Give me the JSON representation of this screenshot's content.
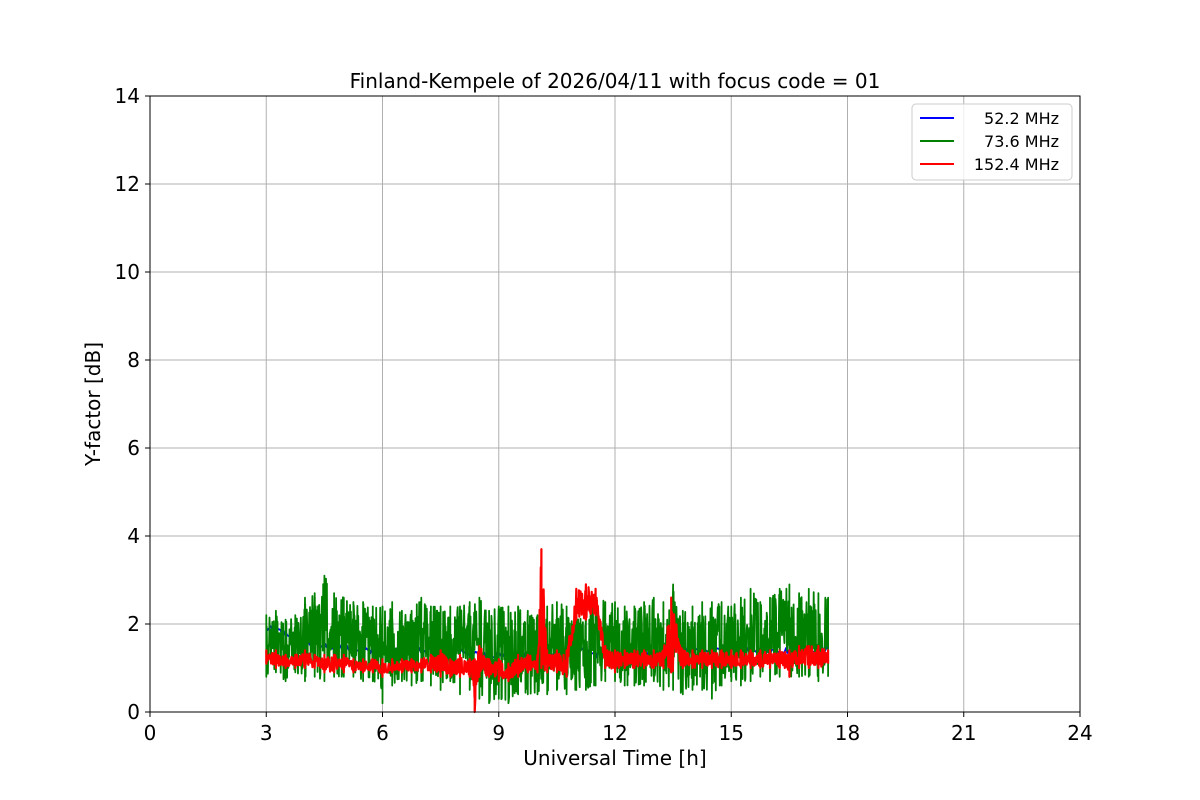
{
  "chart_data": {
    "type": "line",
    "title": "Finland-Kempele of 2026/04/11 with focus code = 01",
    "xlabel": "Universal Time [h]",
    "ylabel": "Y-factor [dB]",
    "xlim": [
      0,
      24
    ],
    "ylim": [
      0,
      14
    ],
    "xticks": [
      0,
      3,
      6,
      9,
      12,
      15,
      18,
      21,
      24
    ],
    "yticks": [
      0,
      2,
      4,
      6,
      8,
      10,
      12,
      14
    ],
    "grid": true,
    "legend_position": "top-right",
    "series": [
      {
        "name": "52.2 MHz",
        "label": "  52.2 MHz",
        "color": "#0000ff",
        "x": [
          3.0,
          3.5,
          4.0,
          4.5,
          5.0,
          5.5,
          6.0,
          6.5,
          7.0,
          7.5,
          8.0,
          8.5,
          9.0,
          9.5,
          10.0,
          10.5,
          11.0,
          11.5,
          12.0,
          12.5,
          13.0,
          13.5,
          14.0,
          14.5,
          15.0,
          15.5,
          16.0,
          16.5,
          17.0,
          17.5
        ],
        "values": [
          1.9,
          1.8,
          1.6,
          1.5,
          1.5,
          1.4,
          1.4,
          1.4,
          1.4,
          1.4,
          1.4,
          1.3,
          1.3,
          1.3,
          1.3,
          1.3,
          1.4,
          1.3,
          1.3,
          1.3,
          1.3,
          1.4,
          1.4,
          1.4,
          1.4,
          1.4,
          1.4,
          1.4,
          1.4,
          1.4
        ]
      },
      {
        "name": "73.6 MHz",
        "label": "  73.6 MHz",
        "color": "#008000",
        "x": [
          3.0,
          3.25,
          3.5,
          3.75,
          4.0,
          4.25,
          4.5,
          4.75,
          5.0,
          5.25,
          5.5,
          5.75,
          6.0,
          6.25,
          6.5,
          6.75,
          7.0,
          7.25,
          7.5,
          7.75,
          8.0,
          8.25,
          8.5,
          8.75,
          9.0,
          9.25,
          9.5,
          9.75,
          10.0,
          10.25,
          10.5,
          10.75,
          11.0,
          11.25,
          11.5,
          11.75,
          12.0,
          12.25,
          12.5,
          12.75,
          13.0,
          13.25,
          13.5,
          13.75,
          14.0,
          14.25,
          14.5,
          14.75,
          15.0,
          15.25,
          15.5,
          15.75,
          16.0,
          16.25,
          16.5,
          16.75,
          17.0,
          17.25,
          17.5
        ],
        "values_high": [
          2.2,
          2.3,
          2.1,
          2.2,
          2.6,
          2.7,
          3.1,
          2.7,
          2.6,
          2.5,
          2.5,
          2.4,
          2.4,
          2.5,
          2.3,
          2.3,
          2.6,
          2.4,
          2.4,
          2.4,
          2.4,
          2.5,
          2.6,
          2.3,
          2.4,
          2.4,
          2.4,
          2.3,
          2.2,
          2.4,
          2.5,
          2.4,
          2.5,
          2.6,
          2.7,
          2.5,
          2.5,
          2.4,
          2.4,
          2.5,
          2.6,
          2.5,
          2.9,
          2.3,
          2.4,
          2.5,
          2.5,
          2.5,
          2.4,
          2.6,
          2.8,
          2.5,
          2.6,
          2.8,
          2.9,
          2.7,
          2.8,
          2.7,
          2.6
        ],
        "values_low": [
          0.8,
          0.9,
          0.7,
          0.9,
          0.7,
          0.8,
          0.7,
          0.8,
          0.8,
          0.8,
          0.7,
          0.7,
          0.2,
          0.6,
          0.7,
          0.6,
          0.7,
          0.6,
          0.5,
          0.7,
          0.4,
          0.5,
          0.3,
          0.2,
          0.3,
          0.2,
          0.4,
          0.4,
          0.4,
          0.4,
          0.5,
          0.4,
          0.5,
          0.5,
          0.6,
          0.7,
          0.7,
          0.6,
          0.6,
          0.6,
          0.7,
          0.5,
          0.5,
          0.4,
          0.5,
          0.5,
          0.3,
          0.6,
          0.7,
          0.6,
          0.7,
          0.8,
          0.7,
          0.8,
          0.8,
          0.8,
          0.8,
          0.7,
          0.8
        ]
      },
      {
        "name": "152.4 MHz",
        "label": "152.4 MHz",
        "color": "#ff0000",
        "x": [
          3.0,
          3.25,
          3.5,
          3.75,
          4.0,
          4.25,
          4.5,
          4.75,
          5.0,
          5.25,
          5.5,
          5.75,
          6.0,
          6.25,
          6.5,
          6.75,
          7.0,
          7.25,
          7.5,
          7.75,
          8.0,
          8.25,
          8.38,
          8.5,
          8.75,
          9.0,
          9.25,
          9.5,
          9.75,
          10.0,
          10.1,
          10.25,
          10.5,
          10.75,
          11.0,
          11.25,
          11.5,
          11.75,
          12.0,
          12.25,
          12.5,
          12.75,
          13.0,
          13.25,
          13.45,
          13.75,
          14.0,
          14.25,
          14.5,
          14.75,
          15.0,
          15.25,
          15.5,
          15.75,
          16.0,
          16.25,
          16.5,
          16.75,
          17.0,
          17.25,
          17.5
        ],
        "values_high": [
          1.4,
          1.4,
          1.3,
          1.3,
          1.4,
          1.3,
          1.3,
          1.3,
          1.3,
          1.2,
          1.2,
          1.2,
          1.2,
          1.2,
          1.2,
          1.2,
          1.2,
          1.3,
          1.4,
          1.2,
          1.3,
          1.2,
          1.2,
          1.5,
          1.2,
          1.2,
          1.1,
          1.3,
          1.3,
          1.3,
          3.7,
          1.4,
          1.4,
          1.4,
          2.8,
          2.9,
          2.8,
          1.5,
          1.4,
          1.4,
          1.4,
          1.4,
          1.4,
          1.4,
          2.6,
          1.4,
          1.4,
          1.4,
          1.4,
          1.4,
          1.4,
          1.4,
          1.4,
          1.4,
          1.4,
          1.4,
          1.4,
          1.5,
          1.5,
          1.5,
          1.4
        ],
        "values_low": [
          1.1,
          1.0,
          1.0,
          1.0,
          1.0,
          1.0,
          0.9,
          0.9,
          0.9,
          0.9,
          0.9,
          0.9,
          0.8,
          0.9,
          0.9,
          0.9,
          0.9,
          0.9,
          0.8,
          0.8,
          0.8,
          0.8,
          0.0,
          0.8,
          0.8,
          0.7,
          0.7,
          0.8,
          0.9,
          0.9,
          1.0,
          0.9,
          0.9,
          0.8,
          2.1,
          2.1,
          2.2,
          1.0,
          0.9,
          1.0,
          1.0,
          1.0,
          1.0,
          1.0,
          0.9,
          1.0,
          1.0,
          1.0,
          1.0,
          1.0,
          1.0,
          1.0,
          1.0,
          1.0,
          1.0,
          1.0,
          0.8,
          1.0,
          1.0,
          1.0,
          1.1
        ]
      }
    ]
  }
}
